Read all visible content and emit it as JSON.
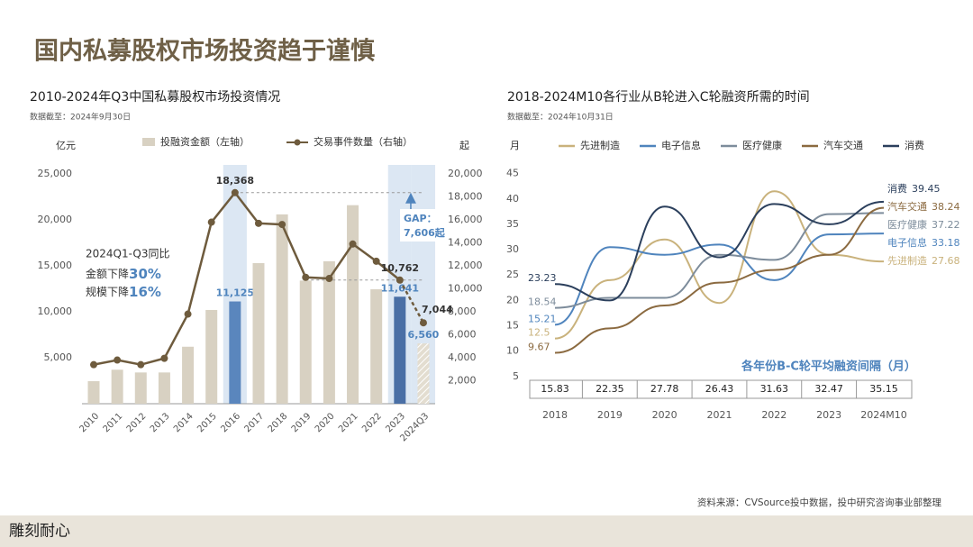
{
  "title": "国内私募股权市场投资趋于谨慎",
  "source": "资料来源：CVSource投中数据，投中研究咨询事业部整理",
  "logo": "雕刻耐心",
  "chart_data": [
    {
      "type": "bar",
      "title": "2010-2024年Q3中国私募股权市场投资情况",
      "subtitle": "数据截至：2024年9月30日",
      "y_label": "亿元",
      "y2_label": "起",
      "categories": [
        "2010",
        "2011",
        "2012",
        "2013",
        "2014",
        "2015",
        "2016",
        "2017",
        "2018",
        "2019",
        "2020",
        "2021",
        "2022",
        "2023",
        "2024Q3"
      ],
      "series": [
        {
          "name": "投融资金额（左轴）",
          "type": "bar",
          "color": "#d8d1c2",
          "colors": [
            "#d8d1c2",
            "#d8d1c2",
            "#d8d1c2",
            "#d8d1c2",
            "#d8d1c2",
            "#d8d1c2",
            "#5a86bd",
            "#d8d1c2",
            "#d8d1c2",
            "#d8d1c2",
            "#d8d1c2",
            "#d8d1c2",
            "#d8d1c2",
            "#4a6fa5",
            "#e3ddd0"
          ],
          "values": [
            2450,
            3700,
            3400,
            3400,
            6200,
            10200,
            11125,
            15300,
            20600,
            13400,
            15500,
            21600,
            12450,
            11641,
            6560
          ],
          "value_labels": [
            null,
            null,
            null,
            null,
            null,
            null,
            "11,125",
            null,
            null,
            null,
            null,
            null,
            null,
            "11,641",
            "6,560"
          ]
        },
        {
          "name": "交易事件数量（右轴）",
          "type": "line",
          "axis": "y2",
          "color": "#6e5b3d",
          "values": [
            3400,
            3800,
            3400,
            3950,
            7800,
            15800,
            18368,
            15700,
            15600,
            11000,
            10900,
            13900,
            12400,
            10762,
            7044
          ],
          "value_labels": [
            null,
            null,
            null,
            null,
            null,
            null,
            "18,368",
            null,
            null,
            null,
            null,
            null,
            null,
            "10,762",
            "7,044"
          ]
        }
      ],
      "ylim": [
        0,
        25000
      ],
      "yticks": [
        {
          "value": 5000,
          "label": "5,000"
        },
        {
          "value": 10000,
          "label": "10,000"
        },
        {
          "value": 15000,
          "label": "15,000"
        },
        {
          "value": 20000,
          "label": "20,000"
        },
        {
          "value": 25000,
          "label": "25,000"
        }
      ],
      "y2lim": [
        0,
        20000
      ],
      "y2ticks": [
        {
          "value": 2000,
          "label": "2,000"
        },
        {
          "value": 4000,
          "label": "4,000"
        },
        {
          "value": 6000,
          "label": "6,000"
        },
        {
          "value": 8000,
          "label": "8,000"
        },
        {
          "value": 10000,
          "label": "10,000"
        },
        {
          "value": 12000,
          "label": "12,000"
        },
        {
          "value": 14000,
          "label": "14,000"
        },
        {
          "value": 16000,
          "label": "16,000"
        },
        {
          "value": 18000,
          "label": "18,000"
        },
        {
          "value": 20000,
          "label": "20,000"
        }
      ],
      "annotations": [
        {
          "text": "2024Q1-Q3同比"
        },
        {
          "text": "金额下降",
          "emphasis": "30%"
        },
        {
          "text": "规模下降",
          "emphasis": "16%"
        },
        {
          "text": "GAP：",
          "emphasis": "7,606起"
        }
      ]
    },
    {
      "type": "line",
      "title": "2018-2024M10各行业从B轮进入C轮融资所需的时间",
      "subtitle": "数据截至：2024年10月31日",
      "y_label": "月",
      "categories": [
        "2018",
        "2019",
        "2020",
        "2021",
        "2022",
        "2023",
        "2024M10"
      ],
      "series": [
        {
          "name": "先进制造",
          "color": "#c9b27c",
          "values": [
            12.5,
            24,
            32,
            19.5,
            41.5,
            29,
            27.68
          ]
        },
        {
          "name": "电子信息",
          "color": "#4f84bd",
          "values": [
            15.21,
            30.5,
            29,
            31,
            24,
            33,
            33.18
          ]
        },
        {
          "name": "医疗健康",
          "color": "#7d8c9b",
          "values": [
            18.54,
            20.5,
            20.5,
            29,
            28,
            37,
            37.22
          ]
        },
        {
          "name": "汽车交通",
          "color": "#8b6a40",
          "values": [
            9.67,
            14.5,
            19,
            23.5,
            26,
            29,
            38.24
          ]
        },
        {
          "name": "消费",
          "color": "#2b3f5c",
          "values": [
            23.23,
            20,
            38.5,
            28.5,
            39,
            35,
            39.45
          ]
        }
      ],
      "ylim": [
        0,
        45
      ],
      "yticks": [
        5,
        10,
        15,
        20,
        25,
        30,
        35,
        40,
        45
      ],
      "table_label": "各年份B-C轮平均融资间隔（月）",
      "table_values": [
        15.83,
        22.35,
        27.78,
        26.43,
        31.63,
        32.47,
        35.15
      ]
    }
  ]
}
